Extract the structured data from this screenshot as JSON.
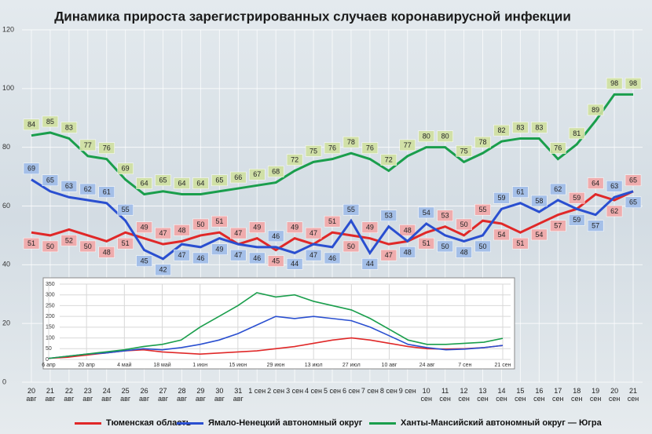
{
  "chart_data": [
    {
      "type": "line",
      "title": "Динамика прироста зарегистрированных случаев коронавирусной инфекции",
      "categories": [
        "20\nавг",
        "21\nавг",
        "22\nавг",
        "23\nавг",
        "24\nавг",
        "25\nавг",
        "26\nавг",
        "27\nавг",
        "28\nавг",
        "29\nавг",
        "30\nавг",
        "31\nавг",
        "1 сен",
        "2 сен",
        "3 сен",
        "4 сен",
        "5 сен",
        "6 сен",
        "7 сен",
        "8 сен",
        "9 сен",
        "10\nсен",
        "11\nсен",
        "12\nсен",
        "13\nсен",
        "14\nсен",
        "15\nсен",
        "16\nсен",
        "17\nсен",
        "18\nсен",
        "19\nсен",
        "20\nсен",
        "21\nсен"
      ],
      "series": [
        {
          "name": "Тюменская область",
          "color": "#e02828",
          "values": [
            51,
            50,
            52,
            50,
            48,
            51,
            49,
            47,
            48,
            50,
            51,
            47,
            49,
            45,
            49,
            47,
            51,
            50,
            49,
            47,
            48,
            51,
            53,
            50,
            55,
            54,
            51,
            54,
            57,
            59,
            64,
            62,
            65
          ]
        },
        {
          "name": "Ямало-Ненецкий автономный округ",
          "color": "#2a4fd0",
          "values": [
            69,
            65,
            63,
            62,
            61,
            55,
            45,
            42,
            47,
            46,
            49,
            47,
            46,
            46,
            44,
            47,
            46,
            55,
            44,
            53,
            48,
            54,
            50,
            48,
            50,
            59,
            61,
            58,
            62,
            59,
            57,
            63,
            65
          ]
        },
        {
          "name": "Ханты-Мансийский автономный округ — Югра",
          "color": "#1a9e4c",
          "values": [
            84,
            85,
            83,
            77,
            76,
            69,
            64,
            65,
            64,
            64,
            65,
            66,
            67,
            68,
            72,
            75,
            76,
            78,
            76,
            72,
            77,
            80,
            80,
            75,
            78,
            82,
            83,
            83,
            76,
            81,
            89,
            98,
            98
          ]
        }
      ],
      "ylim": [
        0,
        120
      ],
      "yticks": [
        0,
        20,
        40,
        60,
        80,
        100,
        120
      ],
      "grid": true,
      "legend": "bottom"
    },
    {
      "type": "line",
      "categories": [
        "6 апр",
        null,
        "20 апр",
        null,
        "4 май",
        null,
        "18 май",
        null,
        "1 июн",
        null,
        "15 июн",
        null,
        "29 июн",
        null,
        "13 июл",
        null,
        "27 июл",
        null,
        "10 авг",
        null,
        "24 авг",
        null,
        "7 сен",
        null,
        "21 сен"
      ],
      "series": [
        {
          "color": "#e02828",
          "values": [
            5,
            10,
            20,
            30,
            40,
            45,
            35,
            30,
            25,
            30,
            35,
            40,
            50,
            60,
            75,
            90,
            100,
            90,
            75,
            60,
            50,
            48,
            50,
            55,
            65
          ]
        },
        {
          "color": "#2a4fd0",
          "values": [
            5,
            15,
            25,
            30,
            40,
            50,
            45,
            55,
            70,
            90,
            120,
            160,
            200,
            190,
            200,
            190,
            180,
            150,
            110,
            70,
            55,
            45,
            48,
            55,
            65
          ]
        },
        {
          "color": "#1a9e4c",
          "values": [
            5,
            15,
            25,
            35,
            45,
            60,
            70,
            90,
            150,
            200,
            250,
            310,
            290,
            300,
            270,
            250,
            230,
            190,
            140,
            90,
            70,
            70,
            75,
            80,
            98
          ]
        }
      ],
      "ylim": [
        0,
        350
      ],
      "yticks": [
        0,
        50,
        100,
        150,
        200,
        250,
        300,
        350
      ],
      "grid": true
    }
  ]
}
